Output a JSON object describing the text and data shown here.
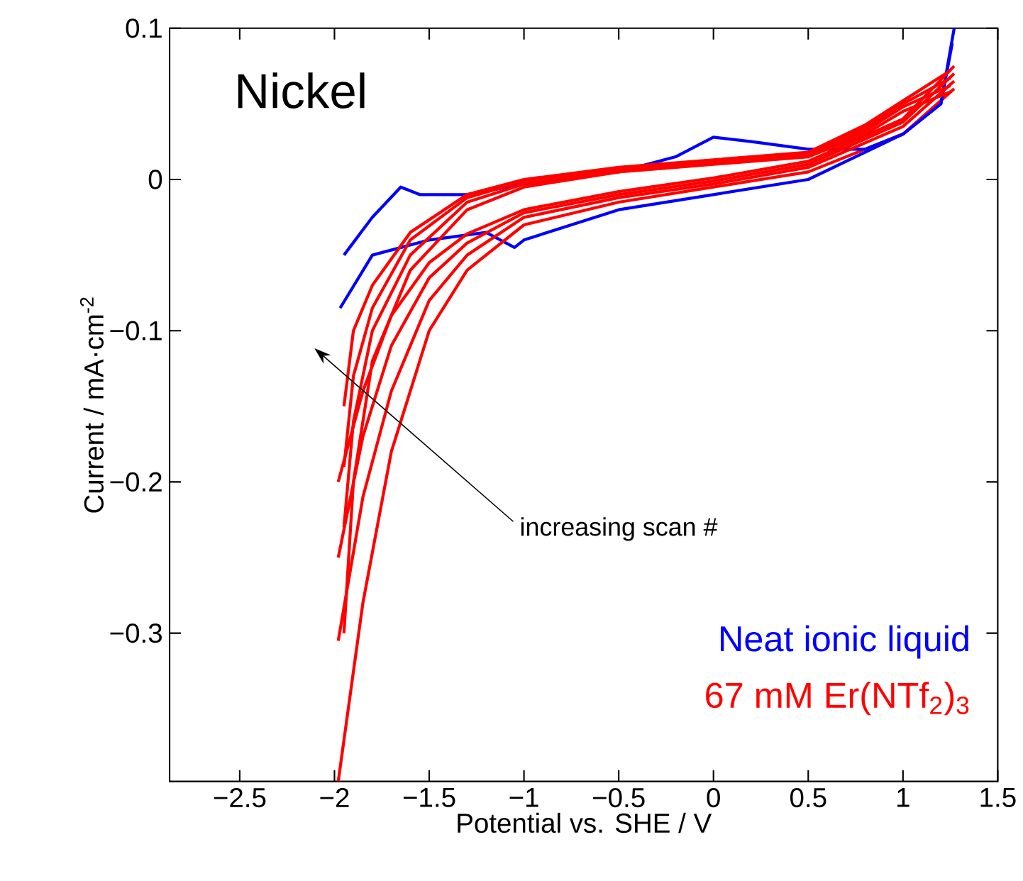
{
  "chart_data": {
    "type": "line",
    "xlabel": "Potential vs. SHE /  V",
    "ylabel": "Current / mA·cm$^{-2}$",
    "xlim": [
      -2.87,
      1.5
    ],
    "ylim": [
      -0.398,
      0.1
    ],
    "xticks": [
      {
        "value": -2.5,
        "label": "−2.5"
      },
      {
        "value": -2,
        "label": "−2"
      },
      {
        "value": -1.5,
        "label": "−1.5"
      },
      {
        "value": -1,
        "label": "−1"
      },
      {
        "value": -0.5,
        "label": "−0.5"
      },
      0,
      0.5,
      1,
      1.5
    ],
    "yticks": [
      {
        "value": -0.3,
        "label": "−0.3"
      },
      {
        "value": -0.2,
        "label": "−0.2"
      },
      {
        "value": -0.1,
        "label": "−0.1"
      },
      0,
      0.1
    ],
    "legend": "bottom right",
    "grid": false,
    "annotations": [
      "Nickel",
      "increasing scan #"
    ],
    "series": [
      {
        "name": "Neat ionic liquid",
        "color": "#0000ff",
        "x": [
          1.27,
          1.2,
          1.0,
          0.5,
          0.0,
          -0.5,
          -1.0,
          -1.05,
          -1.2,
          -1.5,
          -1.8,
          -1.97
        ],
        "values": [
          0.1,
          0.05,
          0.03,
          0.0,
          -0.01,
          -0.02,
          -0.04,
          -0.045,
          -0.035,
          -0.04,
          -0.05,
          -0.085
        ]
      },
      {
        "name": "67 mM Er(NTf$_{2}$)$_{3}$",
        "color": "#ff0000",
        "x": [
          1.27,
          1.0,
          0.5,
          0.0,
          -0.5,
          -1.0,
          -1.3,
          -1.5,
          -1.7,
          -1.85,
          -1.98
        ],
        "values": [
          0.06,
          0.03,
          0.005,
          -0.005,
          -0.015,
          -0.03,
          -0.06,
          -0.1,
          -0.18,
          -0.28,
          -0.398
        ]
      },
      {
        "color": "#0000ff",
        "x": [
          -1.95,
          -1.8,
          -1.65,
          -1.55,
          -1.3,
          -1.0,
          -0.5,
          -0.2,
          0.0,
          0.2,
          0.5,
          0.8,
          1.0,
          1.2,
          1.26
        ],
        "values": [
          -0.05,
          -0.025,
          -0.005,
          -0.01,
          -0.01,
          -0.003,
          0.005,
          0.015,
          0.028,
          0.025,
          0.02,
          0.02,
          0.03,
          0.05,
          0.09
        ]
      },
      {
        "color": "#ff0000",
        "x": [
          -1.95,
          -1.9,
          -1.8,
          -1.6,
          -1.3,
          -1.0,
          -0.5,
          0.0,
          0.5,
          0.8,
          1.0,
          1.25
        ],
        "values": [
          -0.3,
          -0.2,
          -0.12,
          -0.06,
          -0.02,
          -0.005,
          0.005,
          0.01,
          0.015,
          0.03,
          0.045,
          0.058
        ]
      },
      {
        "color": "#ff0000",
        "x": [
          1.27,
          1.0,
          0.5,
          0.0,
          -0.5,
          -1.0,
          -1.3,
          -1.5,
          -1.7,
          -1.85,
          -1.98
        ],
        "values": [
          0.065,
          0.035,
          0.008,
          -0.003,
          -0.012,
          -0.025,
          -0.05,
          -0.08,
          -0.14,
          -0.21,
          -0.305
        ]
      },
      {
        "color": "#ff0000",
        "x": [
          -1.95,
          -1.9,
          -1.8,
          -1.6,
          -1.3,
          -1.0,
          -0.5,
          0.0,
          0.5,
          0.8,
          1.0,
          1.25
        ],
        "values": [
          -0.23,
          -0.16,
          -0.1,
          -0.05,
          -0.015,
          -0.003,
          0.006,
          0.011,
          0.016,
          0.032,
          0.048,
          0.062
        ]
      },
      {
        "color": "#ff0000",
        "x": [
          1.27,
          1.0,
          0.5,
          0.0,
          -0.5,
          -1.0,
          -1.3,
          -1.5,
          -1.7,
          -1.85,
          -1.98
        ],
        "values": [
          0.07,
          0.038,
          0.01,
          -0.001,
          -0.01,
          -0.022,
          -0.042,
          -0.065,
          -0.11,
          -0.17,
          -0.25
        ]
      },
      {
        "color": "#ff0000",
        "x": [
          -1.95,
          -1.9,
          -1.8,
          -1.6,
          -1.3,
          -1.0,
          -0.5,
          0.0,
          0.5,
          0.8,
          1.0,
          1.25
        ],
        "values": [
          -0.19,
          -0.13,
          -0.085,
          -0.04,
          -0.012,
          -0.001,
          0.007,
          0.012,
          0.017,
          0.034,
          0.05,
          0.067
        ]
      },
      {
        "color": "#ff0000",
        "x": [
          1.27,
          1.0,
          0.5,
          0.0,
          -0.5,
          -1.0,
          -1.3,
          -1.5,
          -1.7,
          -1.85,
          -1.98
        ],
        "values": [
          0.075,
          0.04,
          0.012,
          0.001,
          -0.008,
          -0.02,
          -0.036,
          -0.055,
          -0.09,
          -0.14,
          -0.2
        ]
      },
      {
        "color": "#ff0000",
        "x": [
          -1.95,
          -1.9,
          -1.8,
          -1.6,
          -1.3,
          -1.0,
          -0.5,
          0.0,
          0.5,
          0.8,
          1.0,
          1.25
        ],
        "values": [
          -0.15,
          -0.1,
          -0.07,
          -0.035,
          -0.01,
          0.0,
          0.008,
          0.013,
          0.018,
          0.036,
          0.052,
          0.072
        ]
      }
    ]
  }
}
